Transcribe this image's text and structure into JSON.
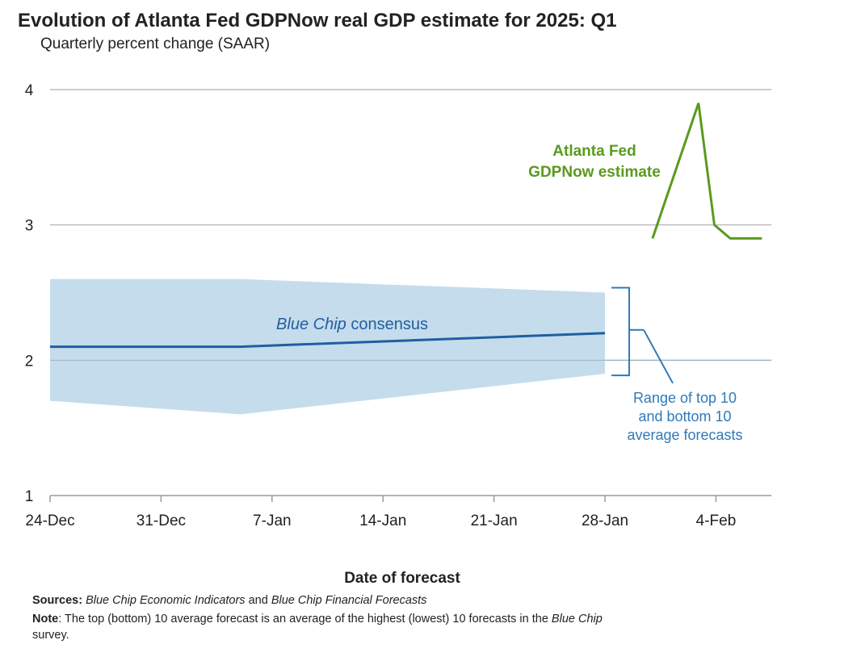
{
  "title": "Evolution of Atlanta Fed GDPNow real GDP estimate for 2025: Q1",
  "subtitle": "Quarterly percent change (SAAR)",
  "colors": {
    "gdpnow": "#5a9a1e",
    "consensus": "#1f5fa0",
    "band": "#c5dcec",
    "annotation": "#2f7ab8",
    "grid": "#bdbdbd",
    "axis": "#9a9a9a"
  },
  "chart_data": {
    "type": "line",
    "title": "Evolution of Atlanta Fed GDPNow real GDP estimate for 2025: Q1",
    "subtitle": "Quarterly percent change (SAAR)",
    "xlabel": "Date of forecast",
    "ylabel": "",
    "xlim": [
      0,
      45.5
    ],
    "ylim": [
      1,
      4
    ],
    "grid": true,
    "x_ticks": [
      {
        "label": "24-Dec",
        "x": 0
      },
      {
        "label": "31-Dec",
        "x": 7
      },
      {
        "label": "7-Jan",
        "x": 14
      },
      {
        "label": "14-Jan",
        "x": 21
      },
      {
        "label": "21-Jan",
        "x": 28
      },
      {
        "label": "28-Jan",
        "x": 35
      },
      {
        "label": "4-Feb",
        "x": 42
      }
    ],
    "y_ticks": [
      "1",
      "2",
      "3",
      "4"
    ],
    "series": [
      {
        "name": "Atlanta Fed GDPNow estimate",
        "label_lines": [
          "Atlanta Fed",
          "GDPNow estimate"
        ],
        "points": [
          [
            38,
            2.9
          ],
          [
            40.9,
            3.9
          ],
          [
            41.9,
            3.0
          ],
          [
            42.9,
            2.9
          ],
          [
            44.9,
            2.9
          ]
        ]
      },
      {
        "name": "Blue Chip consensus",
        "label_italic": "Blue Chip",
        "label_rest": " consensus",
        "points": [
          [
            0,
            2.1
          ],
          [
            12,
            2.1
          ],
          [
            35,
            2.2
          ]
        ]
      }
    ],
    "band": {
      "name": "Range of top 10 and bottom 10 average forecasts",
      "label_lines": [
        "Range of top 10",
        "and bottom 10",
        "average forecasts"
      ],
      "upper": [
        [
          0,
          2.6
        ],
        [
          12,
          2.6
        ],
        [
          35,
          2.5
        ]
      ],
      "lower": [
        [
          0,
          1.7
        ],
        [
          12,
          1.6
        ],
        [
          35,
          1.9
        ]
      ]
    }
  },
  "notes": {
    "sources_label": "Sources:",
    "sources_title1": "Blue Chip Economic Indicators",
    "sources_and": " and ",
    "sources_title2": "Blue Chip Financial Forecasts",
    "note_label": "Note",
    "note_text_a": ": The top (bottom) 10 average forecast is an average of the highest (lowest) 10 forecasts in the ",
    "note_italic": "Blue Chip",
    "note_line2": "survey."
  }
}
